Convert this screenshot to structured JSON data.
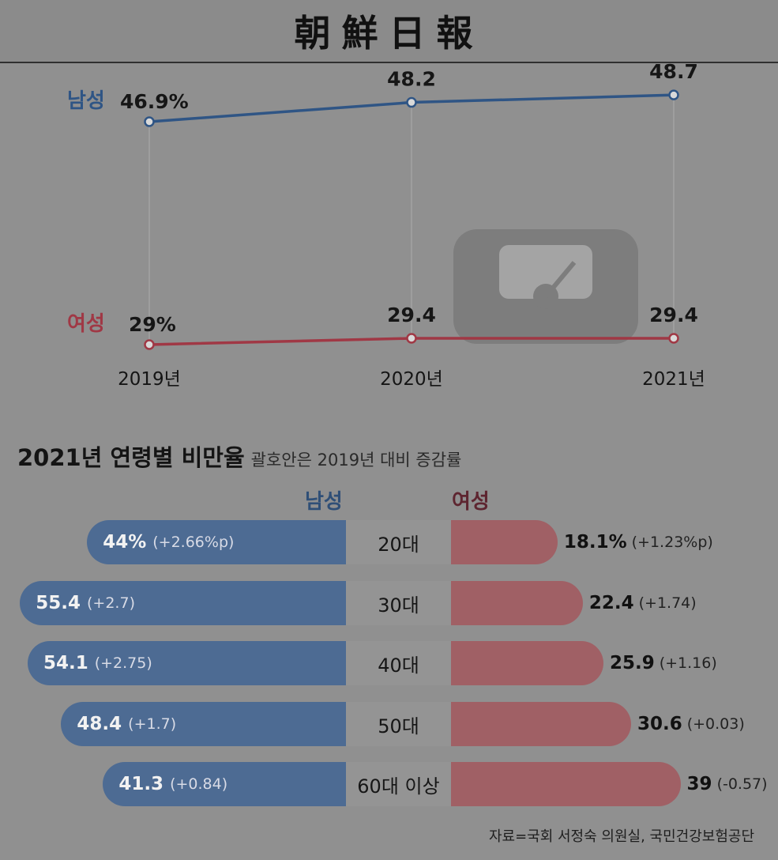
{
  "masthead": "朝鮮日報",
  "colors": {
    "male": "#2f5585",
    "female": "#a03845",
    "male_bar": "#4d6b93",
    "female_bar": "#a06065"
  },
  "chart_data": [
    {
      "type": "line",
      "x": [
        "2019년",
        "2020년",
        "2021년"
      ],
      "series": [
        {
          "name": "남성",
          "values": [
            46.9,
            48.2,
            48.7
          ],
          "labels": [
            "46.9%",
            "48.2",
            "48.7"
          ]
        },
        {
          "name": "여성",
          "values": [
            29,
            29.4,
            29.4
          ],
          "labels": [
            "29%",
            "29.4",
            "29.4"
          ]
        }
      ],
      "grid": "vertical lines at each year"
    },
    {
      "type": "bar",
      "title": "2021년 연령별 비만율",
      "subtitle": "괄호안은 2019년 대비 증감률",
      "column_headers": [
        "남성",
        "여성"
      ],
      "categories": [
        "20대",
        "30대",
        "40대",
        "50대",
        "60대 이상"
      ],
      "series": [
        {
          "name": "남성",
          "values": [
            44,
            55.4,
            54.1,
            48.4,
            41.3
          ],
          "value_labels": [
            "44%",
            "55.4",
            "54.1",
            "48.4",
            "41.3"
          ],
          "changes": [
            "(+2.66%p)",
            "(+2.7)",
            "(+2.75)",
            "(+1.7)",
            "(+0.84)"
          ]
        },
        {
          "name": "여성",
          "values": [
            18.1,
            22.4,
            25.9,
            30.6,
            39
          ],
          "value_labels": [
            "18.1%",
            "22.4",
            "25.9",
            "30.6",
            "39"
          ],
          "changes": [
            "(+1.23%p)",
            "(+1.74)",
            "(+1.16)",
            "(+0.03)",
            "(-0.57)"
          ]
        }
      ]
    }
  ],
  "source": "자료=국회 서정숙 의원실, 국민건강보험공단"
}
